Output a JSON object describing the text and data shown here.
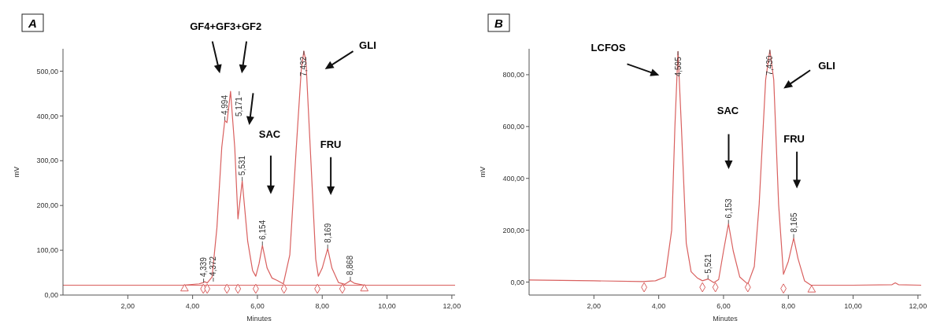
{
  "chart_data": [
    {
      "type": "line",
      "title": "A",
      "xlabel": "Minutes",
      "ylabel": "mV",
      "xlim": [
        0,
        12.1
      ],
      "ylim": [
        0,
        550
      ],
      "xticks": [
        {
          "value": 2,
          "label": "2,00"
        },
        {
          "value": 4,
          "label": "4,00"
        },
        {
          "value": 6,
          "label": "6,00"
        },
        {
          "value": 8,
          "label": "8,00"
        },
        {
          "value": 10,
          "label": "10,00"
        },
        {
          "value": 12,
          "label": "12,00"
        }
      ],
      "yticks": [
        {
          "value": 0,
          "label": "0,00"
        },
        {
          "value": 100,
          "label": "100,00"
        },
        {
          "value": 200,
          "label": "200,00"
        },
        {
          "value": 300,
          "label": "300,00"
        },
        {
          "value": 400,
          "label": "400,00"
        },
        {
          "value": 500,
          "label": "500,00"
        }
      ],
      "series": [
        {
          "color": "#d9605f",
          "x": [
            0,
            3.7,
            4.2,
            4.339,
            4.372,
            4.45,
            4.6,
            4.75,
            4.9,
            4.994,
            5.06,
            5.171,
            5.3,
            5.4,
            5.531,
            5.7,
            5.85,
            5.95,
            6.05,
            6.154,
            6.3,
            6.45,
            6.6,
            6.8,
            7.0,
            7.2,
            7.35,
            7.432,
            7.5,
            7.65,
            7.8,
            7.88,
            8.0,
            8.169,
            8.3,
            8.5,
            8.7,
            8.868,
            9.0,
            9.3,
            12.1
          ],
          "values": [
            22,
            22,
            25,
            28,
            30,
            27,
            40,
            150,
            330,
            390,
            385,
            455,
            330,
            170,
            255,
            120,
            55,
            42,
            70,
            111,
            60,
            38,
            33,
            25,
            90,
            330,
            500,
            545,
            520,
            300,
            80,
            42,
            60,
            104,
            60,
            28,
            24,
            32,
            26,
            22,
            22
          ]
        },
        {
          "type": "scatter",
          "marker": "diamond",
          "color": "#d9605f",
          "x": [
            4.33,
            4.45,
            5.06,
            5.4,
            5.95,
            6.82,
            7.85,
            8.62
          ],
          "values": [
            14,
            14,
            14,
            14,
            14,
            14,
            14,
            14
          ]
        },
        {
          "type": "scatter",
          "marker": "triangle",
          "color": "#d9605f",
          "x": [
            3.75,
            9.3
          ],
          "values": [
            14,
            14
          ]
        }
      ],
      "ref_lines": [
        {
          "axis": "y",
          "value": 22,
          "color": "#d9605f"
        }
      ],
      "annotations": [
        "GF4+GF3+GF2",
        "SAC",
        "GLI",
        "FRU",
        {
          "text": "4,339",
          "x": 4.339,
          "y": 28
        },
        {
          "text": "4,372",
          "x": 4.372,
          "y": 30
        },
        {
          "text": "4,994",
          "x": 4.994,
          "y": 390
        },
        {
          "text": "5,171",
          "x": 5.171,
          "y": 455
        },
        {
          "text": "5,531",
          "x": 5.531,
          "y": 255
        },
        {
          "text": "6,154",
          "x": 6.154,
          "y": 111
        },
        {
          "text": "7,432",
          "x": 7.432,
          "y": 545
        },
        {
          "text": "8,169",
          "x": 8.169,
          "y": 104
        },
        {
          "text": "8,868",
          "x": 8.868,
          "y": 32
        }
      ]
    },
    {
      "type": "line",
      "title": "B",
      "xlabel": "Minutes",
      "ylabel": "mV",
      "xlim": [
        0,
        12.1
      ],
      "ylim": [
        -50,
        900
      ],
      "xticks": [
        {
          "value": 2,
          "label": "2,00"
        },
        {
          "value": 4,
          "label": "4,00"
        },
        {
          "value": 6,
          "label": "6,00"
        },
        {
          "value": 8,
          "label": "8,00"
        },
        {
          "value": 10,
          "label": "10,00"
        },
        {
          "value": 12,
          "label": "12,00"
        }
      ],
      "yticks": [
        {
          "value": 0,
          "label": "0,00"
        },
        {
          "value": 200,
          "label": "200,00"
        },
        {
          "value": 400,
          "label": "400,00"
        },
        {
          "value": 600,
          "label": "600,00"
        },
        {
          "value": 800,
          "label": "800,00"
        }
      ],
      "series": [
        {
          "color": "#d9605f",
          "x": [
            0,
            2,
            3.5,
            3.9,
            4.2,
            4.4,
            4.5,
            4.595,
            4.7,
            4.85,
            5.0,
            5.2,
            5.35,
            5.521,
            5.7,
            5.85,
            6.0,
            6.153,
            6.3,
            6.5,
            6.75,
            6.95,
            7.1,
            7.3,
            7.43,
            7.55,
            7.7,
            7.85,
            8.0,
            8.165,
            8.3,
            8.5,
            8.7,
            10,
            11.2,
            11.3,
            11.4,
            12.1
          ],
          "values": [
            8,
            5,
            2,
            5,
            20,
            200,
            600,
            890,
            600,
            150,
            40,
            15,
            5,
            12,
            -2,
            10,
            120,
            225,
            120,
            20,
            -8,
            60,
            300,
            780,
            895,
            780,
            300,
            30,
            80,
            170,
            90,
            5,
            -12,
            -12,
            -10,
            -3,
            -10,
            -12
          ]
        },
        {
          "type": "scatter",
          "marker": "diamond",
          "color": "#d9605f",
          "x": [
            3.55,
            5.35,
            5.75,
            6.75,
            7.85
          ],
          "values": [
            -20,
            -20,
            -20,
            -20,
            -25
          ]
        },
        {
          "type": "scatter",
          "marker": "triangle",
          "color": "#d9605f",
          "x": [
            8.72
          ],
          "values": [
            -30
          ]
        }
      ],
      "annotations": [
        "LCFOS",
        "SAC",
        "GLI",
        "FRU",
        {
          "text": "4,595",
          "x": 4.595,
          "y": 890
        },
        {
          "text": "5,521",
          "x": 5.521,
          "y": 12
        },
        {
          "text": "6,153",
          "x": 6.153,
          "y": 225
        },
        {
          "text": "7,430",
          "x": 7.43,
          "y": 895
        },
        {
          "text": "8,165",
          "x": 8.165,
          "y": 170
        }
      ]
    }
  ]
}
